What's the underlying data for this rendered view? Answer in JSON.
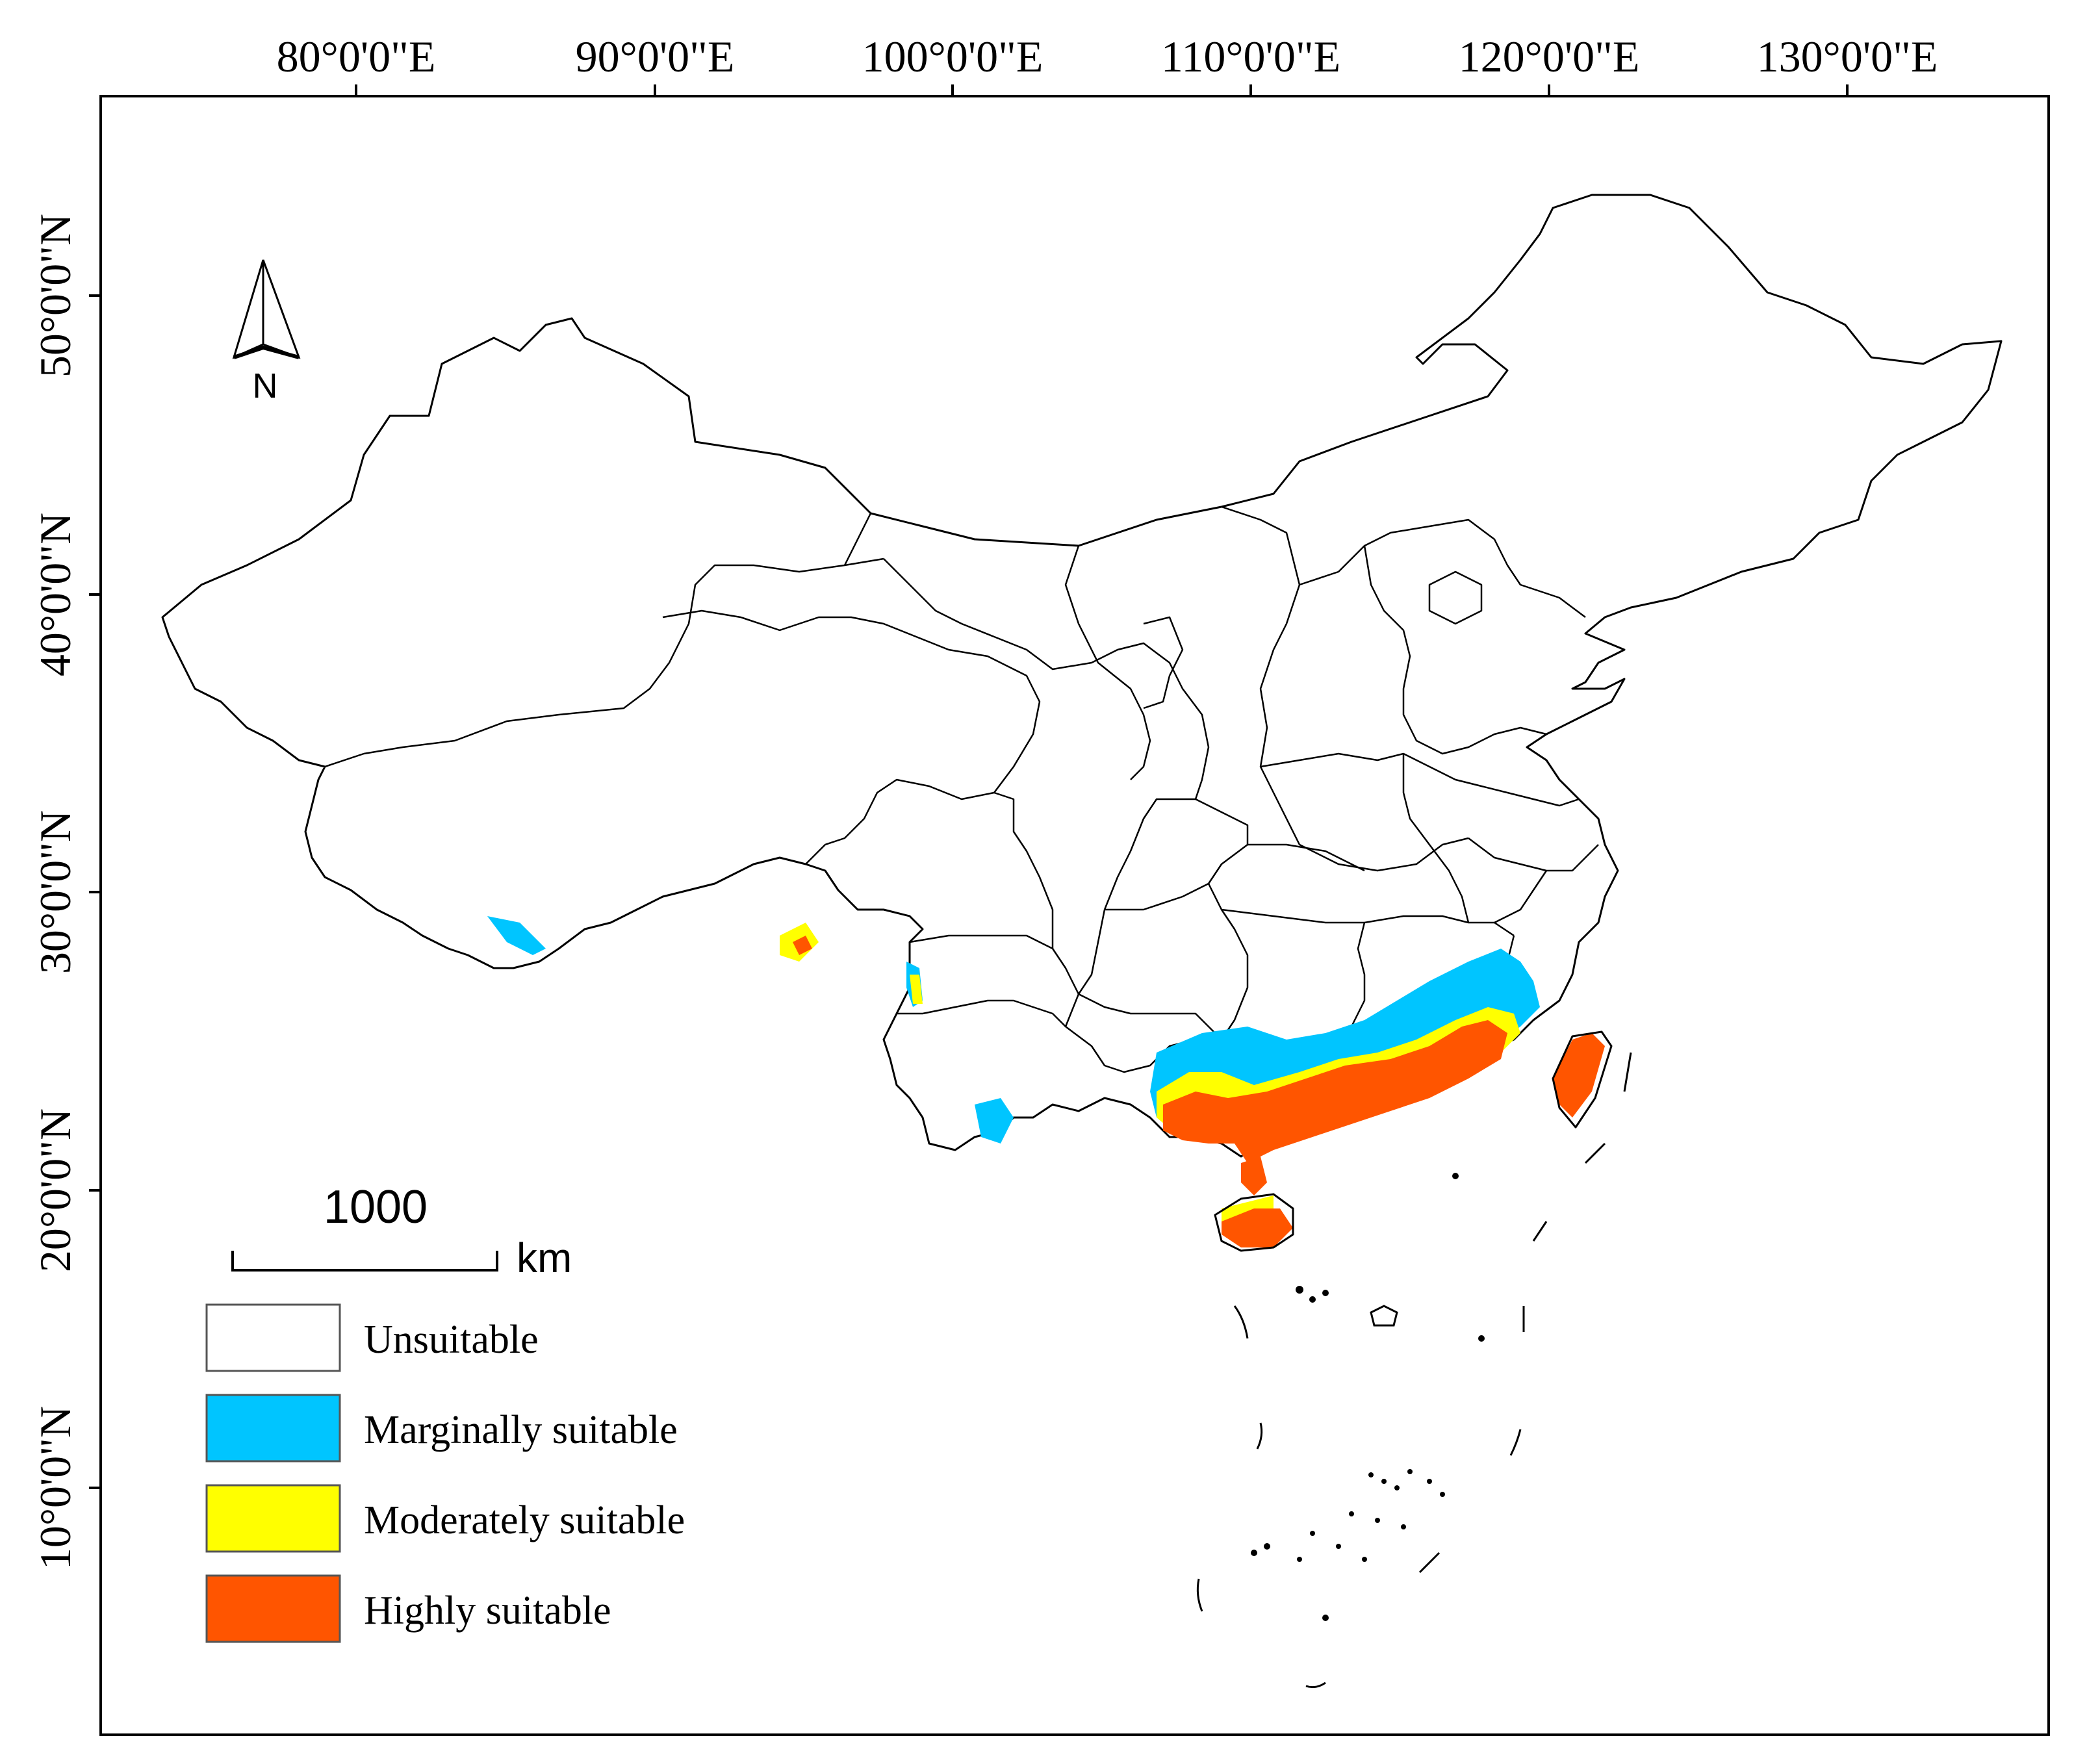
{
  "map": {
    "lon_labels": [
      "80°0'0\"E",
      "90°0'0\"E",
      "100°0'0\"E",
      "110°0'0\"E",
      "120°0'0\"E",
      "130°0'0\"E"
    ],
    "lat_labels": [
      "50°0'0\"N",
      "40°0'0\"N",
      "30°0'0\"N",
      "20°0'0\"N",
      "10°0'0\"N"
    ],
    "north_arrow_label": "N",
    "scale_bar": {
      "value": "1000",
      "unit": "km"
    },
    "legend": [
      {
        "label": "Unsuitable",
        "color": "#ffffff"
      },
      {
        "label": "Marginally suitable",
        "color": "#00c5ff"
      },
      {
        "label": "Moderately suitable",
        "color": "#ffff00"
      },
      {
        "label": "Highly suitable",
        "color": "#ff5500"
      }
    ]
  }
}
